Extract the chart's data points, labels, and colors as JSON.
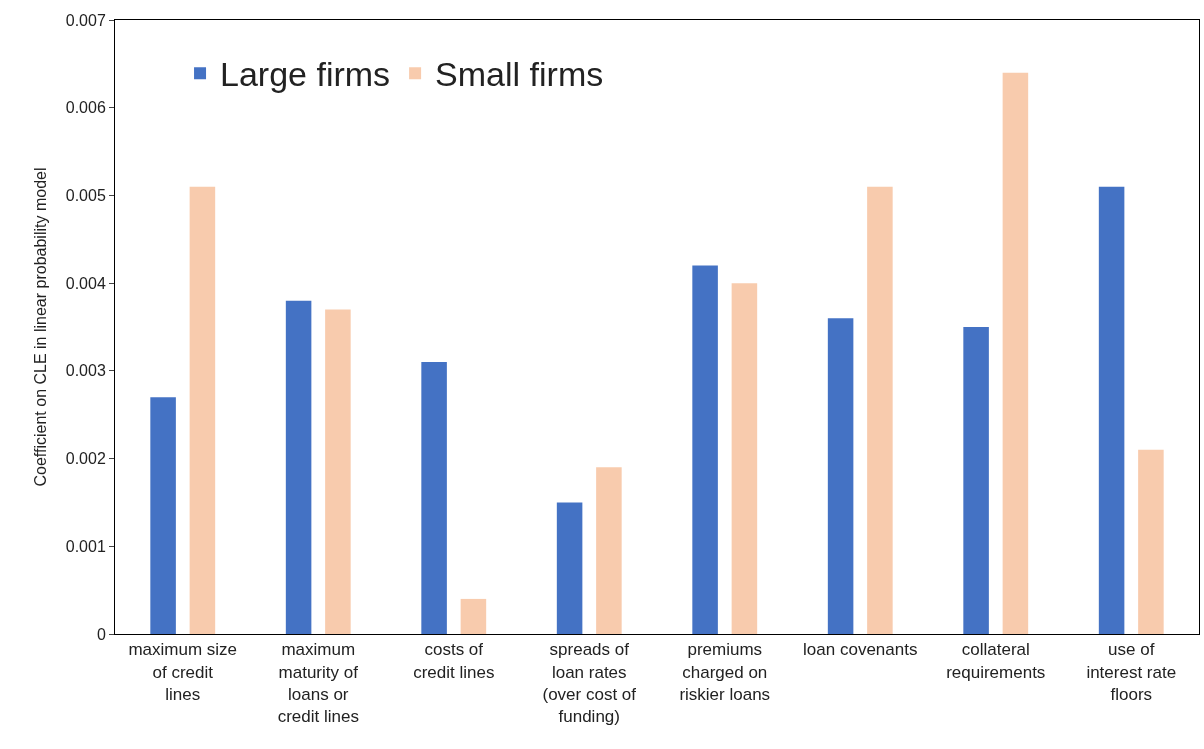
{
  "chart_data": {
    "type": "bar",
    "ylabel": "Coefficient on CLE in linear probability model",
    "categories": [
      "maximum size of credit lines",
      "maximum maturity of loans or credit lines",
      "costs of credit lines",
      "spreads of loan rates (over cost of funding)",
      "premiums charged on riskier loans",
      "loan covenants",
      "collateral requirements",
      "use of interest rate floors"
    ],
    "series": [
      {
        "name": "Large firms",
        "color": "#4472c4",
        "values": [
          0.0027,
          0.0038,
          0.0031,
          0.0015,
          0.0042,
          0.0036,
          0.0035,
          0.0051
        ]
      },
      {
        "name": "Small firms",
        "color": "#f8cbad",
        "values": [
          0.0051,
          0.0037,
          0.0004,
          0.0019,
          0.004,
          0.0051,
          0.0064,
          0.0021
        ]
      }
    ],
    "ylim": [
      0,
      0.007
    ],
    "yticks": [
      0,
      0.001,
      0.002,
      0.003,
      0.004,
      0.005,
      0.006,
      0.007
    ],
    "legend": "top left"
  }
}
